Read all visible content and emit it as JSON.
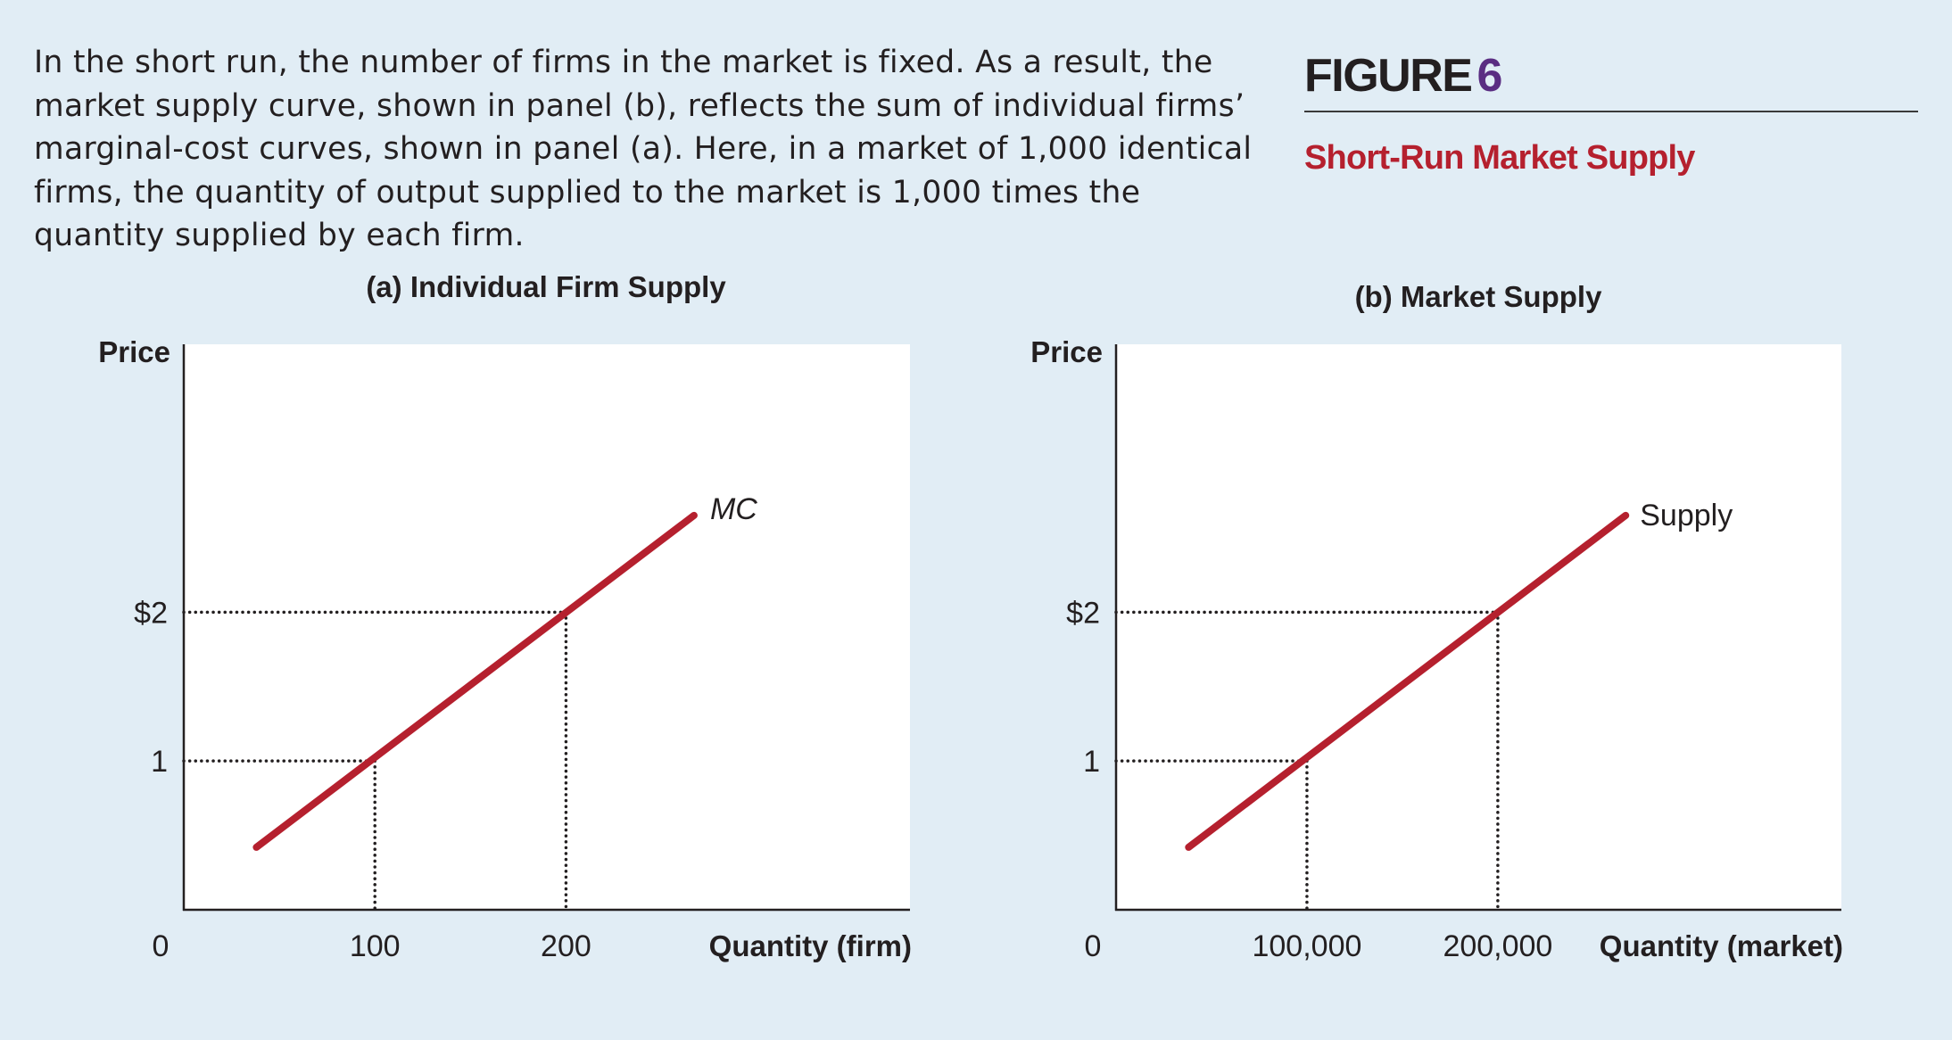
{
  "caption": "In the short run, the number of firms in the market is fixed. As a result, the market supply curve, shown in panel (b), reflects the sum of individual firms’ marginal-cost curves, shown in panel (a). Here, in a market of 1,000 identical firms, the quantity of output supplied to the market is 1,000 times the quantity supplied by each firm.",
  "figure": {
    "label": "FIGURE",
    "number": "6",
    "title": "Short-Run Market Supply"
  },
  "colors": {
    "background": "#e1edf5",
    "plot": "#ffffff",
    "curve": "#b5202e",
    "title": "#b5202e",
    "figure_number": "#5a2d82",
    "text": "#231f20"
  },
  "chart_data": [
    {
      "type": "line",
      "title": "(a) Individual Firm Supply",
      "xlabel": "Quantity (firm)",
      "ylabel": "Price",
      "xlim": [
        0,
        380
      ],
      "ylim": [
        0,
        3.8
      ],
      "origin_label": "0",
      "x_ticks": [
        {
          "value": 100,
          "label": "100"
        },
        {
          "value": 200,
          "label": "200"
        }
      ],
      "y_ticks": [
        {
          "value": 1,
          "label": "1"
        },
        {
          "value": 2,
          "label": "$2"
        }
      ],
      "series": [
        {
          "name": "MC",
          "x": [
            38,
            267
          ],
          "y": [
            0.42,
            2.65
          ]
        }
      ],
      "guides": [
        {
          "x": 100,
          "y": 1
        },
        {
          "x": 200,
          "y": 2
        }
      ],
      "grid": false
    },
    {
      "type": "line",
      "title": "(b) Market Supply",
      "xlabel": "Quantity (market)",
      "ylabel": "Price",
      "xlim": [
        0,
        380000
      ],
      "ylim": [
        0,
        3.8
      ],
      "origin_label": "0",
      "x_ticks": [
        {
          "value": 100000,
          "label": "100,000"
        },
        {
          "value": 200000,
          "label": "200,000"
        }
      ],
      "y_ticks": [
        {
          "value": 1,
          "label": "1"
        },
        {
          "value": 2,
          "label": "$2"
        }
      ],
      "series": [
        {
          "name": "Supply",
          "x": [
            38000,
            267000
          ],
          "y": [
            0.42,
            2.65
          ]
        }
      ],
      "guides": [
        {
          "x": 100000,
          "y": 1
        },
        {
          "x": 200000,
          "y": 2
        }
      ],
      "grid": false
    }
  ]
}
